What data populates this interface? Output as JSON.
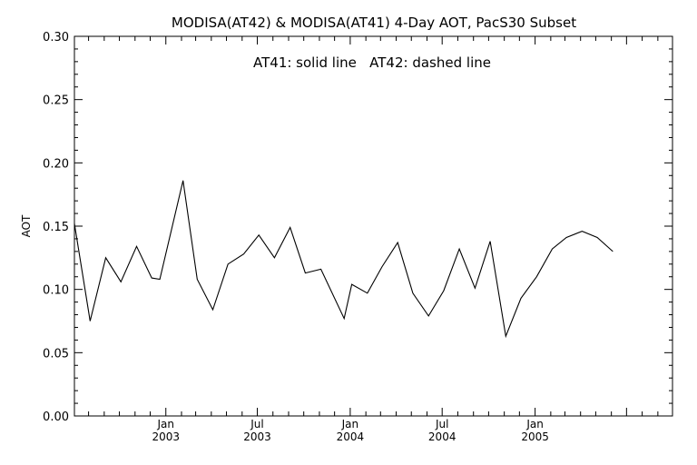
{
  "chart_data": {
    "type": "line",
    "title": "MODISA(AT42) & MODISA(AT41) 4-Day AOT, PacS30 Subset",
    "annotation": "AT41: solid line   AT42: dashed line",
    "xlabel": "",
    "ylabel": "AOT",
    "ylim": [
      0.0,
      0.3
    ],
    "yticks": [
      "0.00",
      "0.05",
      "0.10",
      "0.15",
      "0.20",
      "0.25",
      "0.30"
    ],
    "xlim": [
      "2002-07-04",
      "2005-09-30"
    ],
    "xticks": [
      {
        "date": "2003-01-01",
        "month": "Jan",
        "year": "2003"
      },
      {
        "date": "2003-07-01",
        "month": "Jul",
        "year": "2003"
      },
      {
        "date": "2004-01-01",
        "month": "Jan",
        "year": "2004"
      },
      {
        "date": "2004-07-01",
        "month": "Jul",
        "year": "2004"
      },
      {
        "date": "2005-01-01",
        "month": "Jan",
        "year": "2005"
      }
    ],
    "grid": false,
    "series": [
      {
        "line_style": "solid",
        "points": [
          {
            "x": "2002-07-04",
            "y": 0.152
          },
          {
            "x": "2002-08-04",
            "y": 0.075
          },
          {
            "x": "2002-09-04",
            "y": 0.125
          },
          {
            "x": "2002-10-04",
            "y": 0.106
          },
          {
            "x": "2002-11-04",
            "y": 0.134
          },
          {
            "x": "2002-12-04",
            "y": 0.109
          },
          {
            "x": "2002-12-20",
            "y": 0.108
          },
          {
            "x": "2003-02-04",
            "y": 0.186
          },
          {
            "x": "2003-03-04",
            "y": 0.108
          },
          {
            "x": "2003-04-04",
            "y": 0.084
          },
          {
            "x": "2003-05-04",
            "y": 0.12
          },
          {
            "x": "2003-06-04",
            "y": 0.128
          },
          {
            "x": "2003-07-04",
            "y": 0.143
          },
          {
            "x": "2003-08-04",
            "y": 0.125
          },
          {
            "x": "2003-09-04",
            "y": 0.149
          },
          {
            "x": "2003-10-04",
            "y": 0.113
          },
          {
            "x": "2003-11-04",
            "y": 0.116
          },
          {
            "x": "2003-12-20",
            "y": 0.077
          },
          {
            "x": "2004-01-04",
            "y": 0.104
          },
          {
            "x": "2004-02-04",
            "y": 0.097
          },
          {
            "x": "2004-03-04",
            "y": 0.118
          },
          {
            "x": "2004-04-04",
            "y": 0.137
          },
          {
            "x": "2004-05-04",
            "y": 0.097
          },
          {
            "x": "2004-06-04",
            "y": 0.079
          },
          {
            "x": "2004-07-04",
            "y": 0.099
          },
          {
            "x": "2004-08-04",
            "y": 0.132
          },
          {
            "x": "2004-09-04",
            "y": 0.101
          },
          {
            "x": "2004-10-04",
            "y": 0.138
          },
          {
            "x": "2004-11-04",
            "y": 0.063
          },
          {
            "x": "2004-12-04",
            "y": 0.093
          },
          {
            "x": "2005-01-04",
            "y": 0.11
          },
          {
            "x": "2005-02-04",
            "y": 0.132
          },
          {
            "x": "2005-03-04",
            "y": 0.141
          },
          {
            "x": "2005-04-04",
            "y": 0.146
          },
          {
            "x": "2005-05-04",
            "y": 0.141
          },
          {
            "x": "2005-06-04",
            "y": 0.13
          }
        ]
      }
    ]
  }
}
